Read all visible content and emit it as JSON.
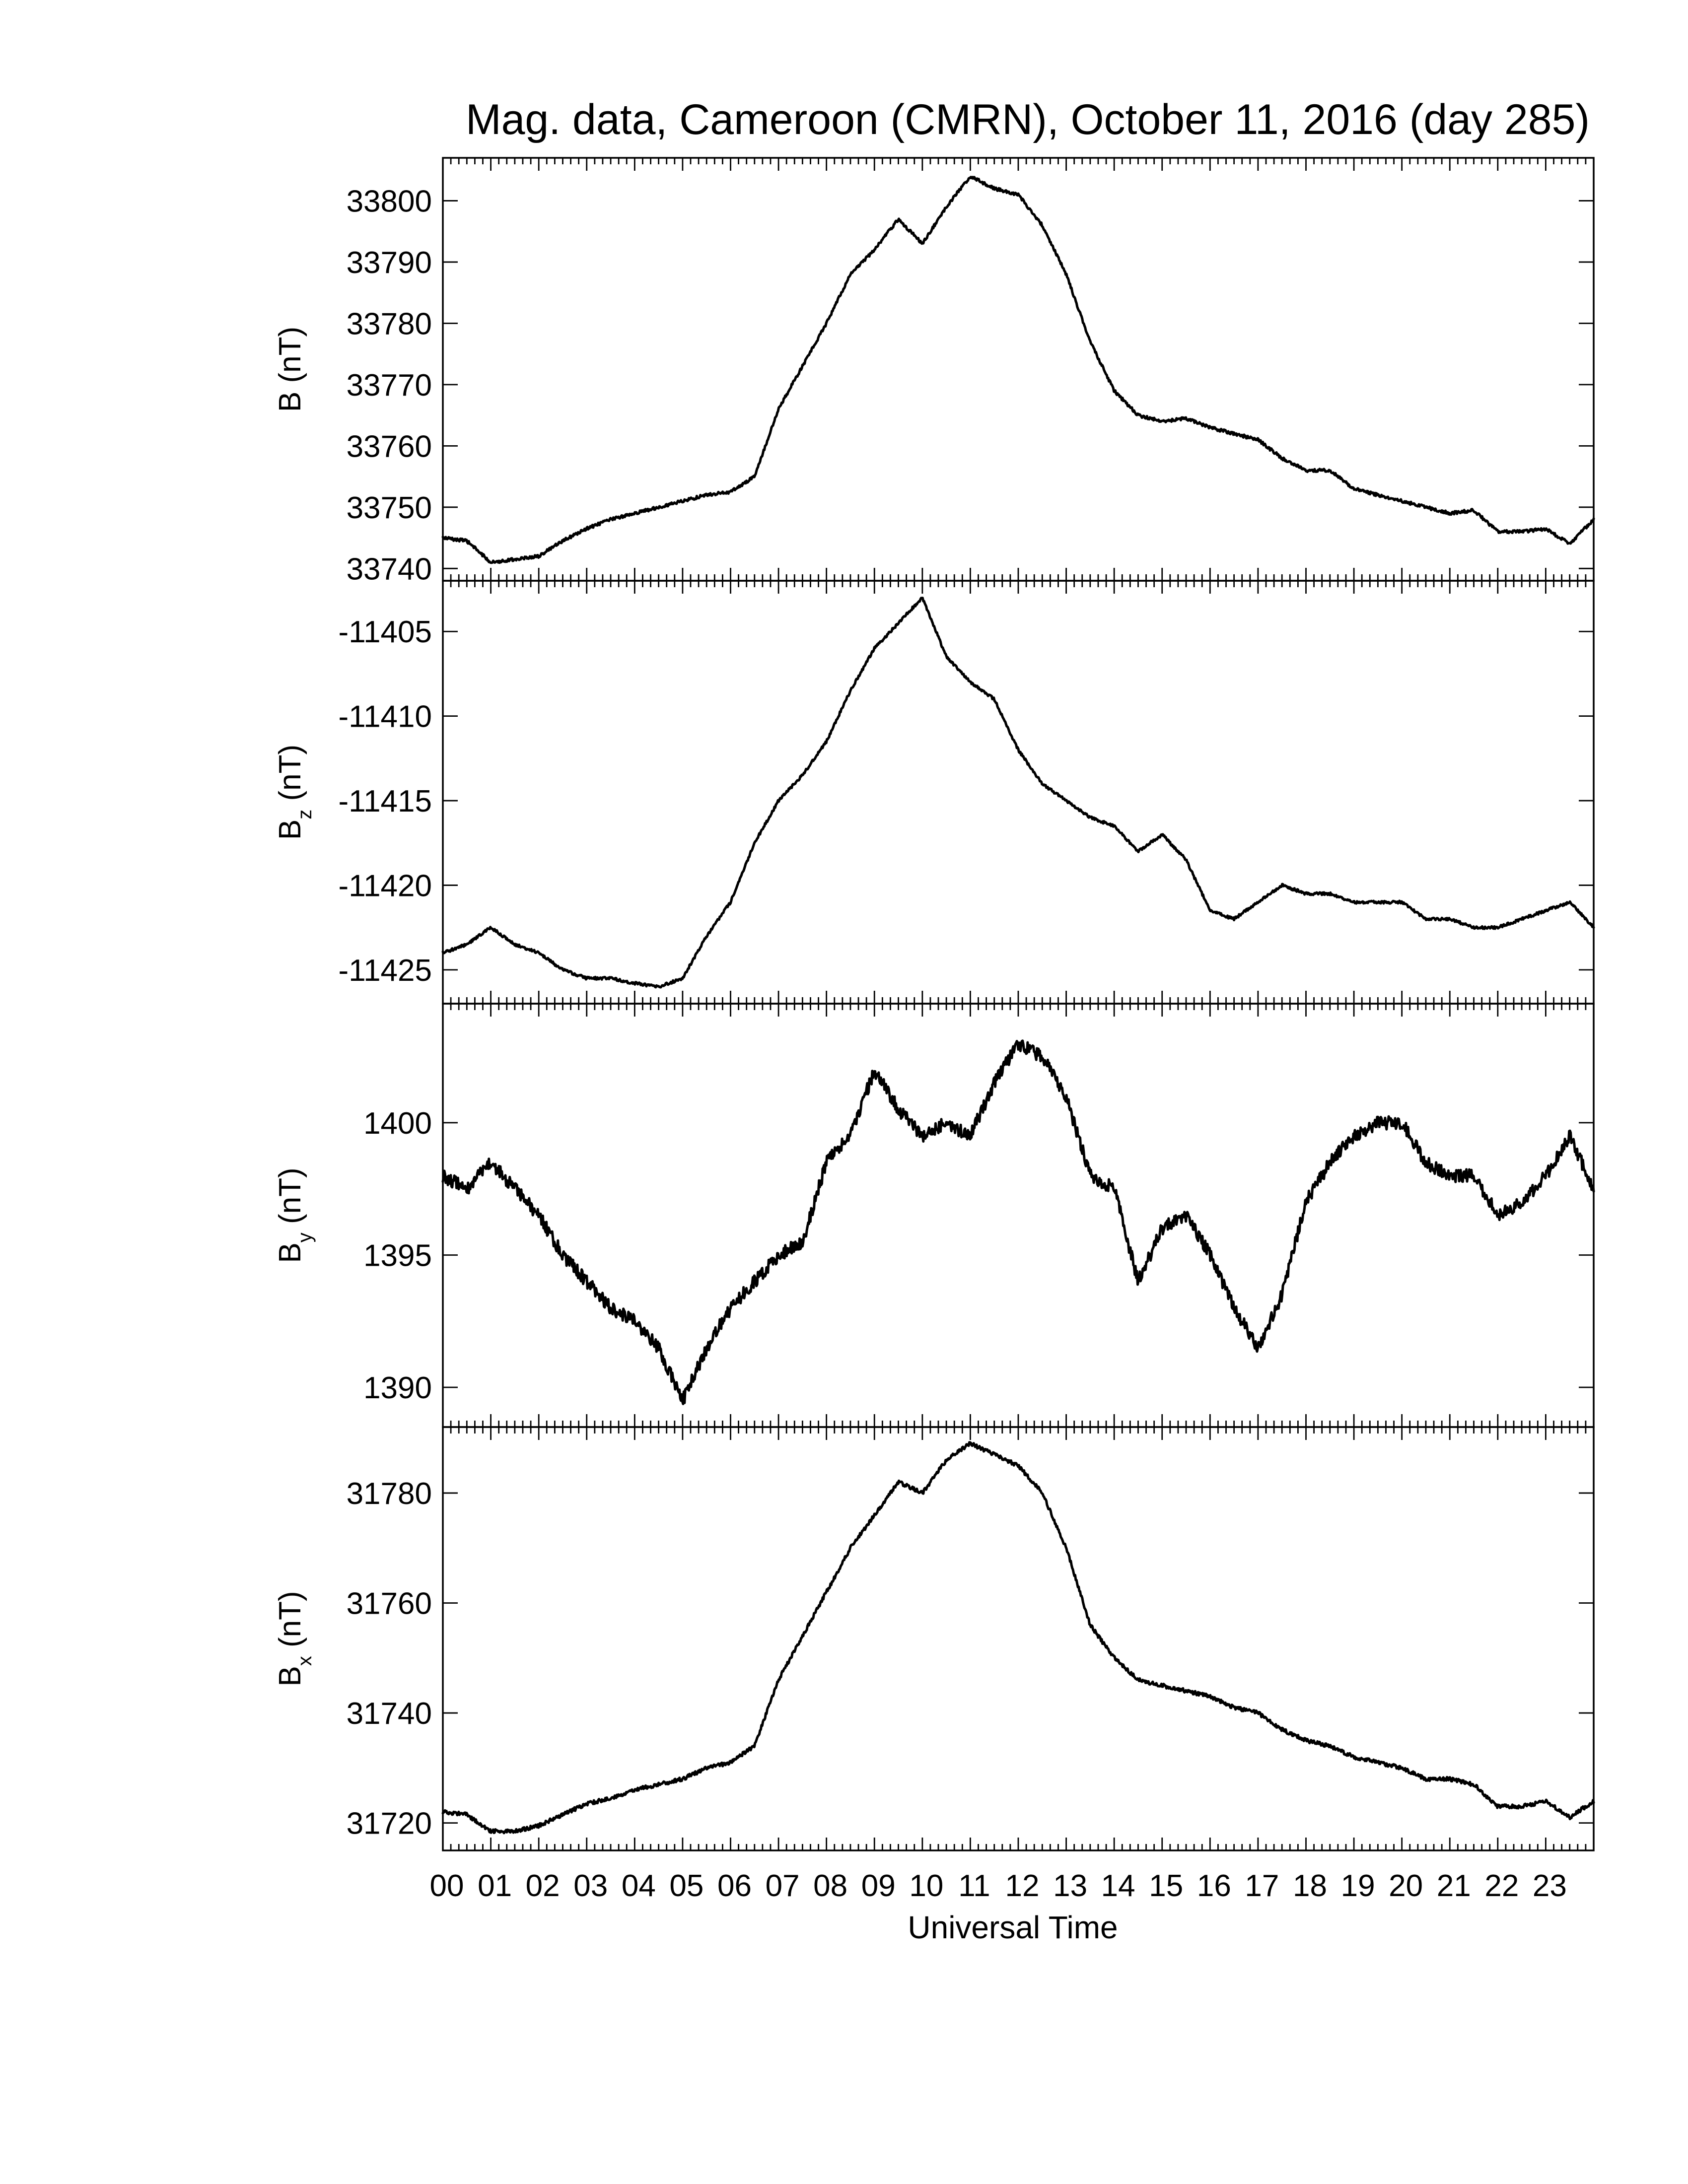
{
  "figure": {
    "title": "Mag. data, Cameroon (CMRN), October 11, 2016 (day 285)",
    "xlabel": "Universal Time",
    "hour_labels": [
      "00",
      "01",
      "02",
      "03",
      "04",
      "05",
      "06",
      "07",
      "08",
      "09",
      "10",
      "11",
      "12",
      "13",
      "14",
      "15",
      "16",
      "17",
      "18",
      "19",
      "20",
      "21",
      "22",
      "23"
    ]
  },
  "chart_data": [
    {
      "type": "line",
      "ylabel_main": "B",
      "ylabel_sub": "",
      "ylabel_unit": "(nT)",
      "xlim": [
        0,
        24
      ],
      "ylim": [
        33738,
        33807
      ],
      "yticks": [
        33740,
        33750,
        33760,
        33770,
        33780,
        33790,
        33800
      ],
      "ytick_labels": [
        "33740",
        "33750",
        "33760",
        "33770",
        "33780",
        "33790",
        "33800"
      ],
      "noise": 0.25,
      "x": [
        0,
        0.5,
        1,
        1.5,
        2,
        2.5,
        3,
        3.5,
        4,
        4.5,
        5,
        5.5,
        6,
        6.5,
        7,
        7.5,
        8,
        8.5,
        9,
        9.5,
        10,
        10.5,
        11,
        11.5,
        12,
        12.5,
        13,
        13.5,
        14,
        14.5,
        15,
        15.5,
        16,
        16.5,
        17,
        17.5,
        18,
        18.5,
        19,
        19.5,
        20,
        20.5,
        21,
        21.5,
        22,
        22.5,
        23,
        23.5,
        24
      ],
      "values": [
        33745,
        33744.5,
        33741,
        33741.5,
        33742,
        33744.5,
        33746.5,
        33748,
        33749,
        33750,
        33751,
        33752,
        33752.5,
        33755,
        33766,
        33773,
        33780,
        33788,
        33792,
        33797,
        33793,
        33799,
        33804,
        33802,
        33801,
        33796,
        33788,
        33777,
        33769,
        33765,
        33764,
        33764.5,
        33763,
        33762,
        33761,
        33758,
        33756,
        33756,
        33753,
        33752,
        33751,
        33750,
        33749,
        33749.5,
        33746,
        33746,
        33746.5,
        33744,
        33748
      ]
    },
    {
      "type": "line",
      "ylabel_main": "B",
      "ylabel_sub": "z",
      "ylabel_unit": "(nT)",
      "xlim": [
        0,
        24
      ],
      "ylim": [
        -11427,
        -11402
      ],
      "yticks": [
        -11425,
        -11420,
        -11415,
        -11410,
        -11405
      ],
      "ytick_labels": [
        "-11425",
        "-11420",
        "-11415",
        "-11410",
        "-11405"
      ],
      "noise": 0.08,
      "x": [
        0,
        0.5,
        1,
        1.5,
        2,
        2.5,
        3,
        3.5,
        4,
        4.5,
        5,
        5.5,
        6,
        6.5,
        7,
        7.5,
        8,
        8.5,
        9,
        9.5,
        10,
        10.5,
        11,
        11.5,
        12,
        12.5,
        13,
        13.5,
        14,
        14.5,
        15,
        15.5,
        16,
        16.5,
        17,
        17.5,
        18,
        18.5,
        19,
        19.5,
        20,
        20.5,
        21,
        21.5,
        22,
        22.5,
        23,
        23.5,
        24
      ],
      "values": [
        -11424,
        -11423.5,
        -11422.5,
        -11423.5,
        -11424,
        -11425,
        -11425.5,
        -11425.5,
        -11425.8,
        -11426,
        -11425.5,
        -11423,
        -11421,
        -11417.5,
        -11415,
        -11413.5,
        -11411.5,
        -11408.5,
        -11406,
        -11404.5,
        -11403,
        -11406.5,
        -11408,
        -11409,
        -11412,
        -11414,
        -11415,
        -11416,
        -11416.5,
        -11418,
        -11417,
        -11418.5,
        -11421.5,
        -11422,
        -11421,
        -11420,
        -11420.5,
        -11420.5,
        -11421,
        -11421,
        -11421,
        -11422,
        -11422,
        -11422.5,
        -11422.5,
        -11422,
        -11421.5,
        -11421,
        -11422.5
      ]
    },
    {
      "type": "line",
      "ylabel_main": "B",
      "ylabel_sub": "y",
      "ylabel_unit": "(nT)",
      "xlim": [
        0,
        24
      ],
      "ylim": [
        1388.5,
        1404.5
      ],
      "yticks": [
        1390,
        1395,
        1400
      ],
      "ytick_labels": [
        "1390",
        "1395",
        "1400"
      ],
      "noise": 0.25,
      "x": [
        0,
        0.5,
        1,
        1.5,
        2,
        2.5,
        3,
        3.5,
        4,
        4.5,
        5,
        5.5,
        6,
        6.5,
        7,
        7.5,
        8,
        8.5,
        9,
        9.5,
        10,
        10.5,
        11,
        11.5,
        12,
        12.5,
        13,
        13.5,
        14,
        14.5,
        15,
        15.5,
        16,
        16.5,
        17,
        17.5,
        18,
        18.5,
        19,
        19.5,
        20,
        20.5,
        21,
        21.5,
        22,
        22.5,
        23,
        23.5,
        24
      ],
      "values": [
        1398,
        1397.5,
        1398.5,
        1397.5,
        1396.5,
        1395,
        1394,
        1393,
        1392.5,
        1391.5,
        1389.5,
        1391.5,
        1393,
        1394,
        1395,
        1395.5,
        1398.5,
        1399.5,
        1402,
        1400.5,
        1399.5,
        1400,
        1399.5,
        1401.5,
        1403,
        1402.5,
        1401,
        1398,
        1397.5,
        1394,
        1396,
        1396.5,
        1395,
        1393,
        1391.5,
        1393.5,
        1397,
        1398.5,
        1399.5,
        1400,
        1400,
        1398.5,
        1398,
        1398,
        1396.5,
        1397,
        1398,
        1399.5,
        1397.5
      ]
    },
    {
      "type": "line",
      "ylabel_main": "B",
      "ylabel_sub": "x",
      "ylabel_unit": "(nT)",
      "xlim": [
        0,
        24
      ],
      "ylim": [
        31715,
        31792
      ],
      "yticks": [
        31720,
        31740,
        31760,
        31780
      ],
      "ytick_labels": [
        "31720",
        "31740",
        "31760",
        "31780"
      ],
      "noise": 0.35,
      "x": [
        0,
        0.5,
        1,
        1.5,
        2,
        2.5,
        3,
        3.5,
        4,
        4.5,
        5,
        5.5,
        6,
        6.5,
        7,
        7.5,
        8,
        8.5,
        9,
        9.5,
        10,
        10.5,
        11,
        11.5,
        12,
        12.5,
        13,
        13.5,
        14,
        14.5,
        15,
        15.5,
        16,
        16.5,
        17,
        17.5,
        18,
        18.5,
        19,
        19.5,
        20,
        20.5,
        21,
        21.5,
        22,
        22.5,
        23,
        23.5,
        24
      ],
      "values": [
        31722,
        31721.5,
        31718.5,
        31718.5,
        31719.5,
        31721.5,
        31723.5,
        31724.5,
        31726,
        31727,
        31728,
        31730,
        31731,
        31734,
        31746,
        31754,
        31762,
        31770,
        31776,
        31782,
        31780,
        31786,
        31789,
        31787,
        31785,
        31780,
        31770,
        31756,
        31750,
        31746,
        31745,
        31744,
        31743,
        31741,
        31740,
        31737,
        31735,
        31734,
        31732,
        31731,
        31730,
        31728,
        31728,
        31727,
        31723,
        31723,
        31724,
        31721,
        31724
      ]
    }
  ]
}
